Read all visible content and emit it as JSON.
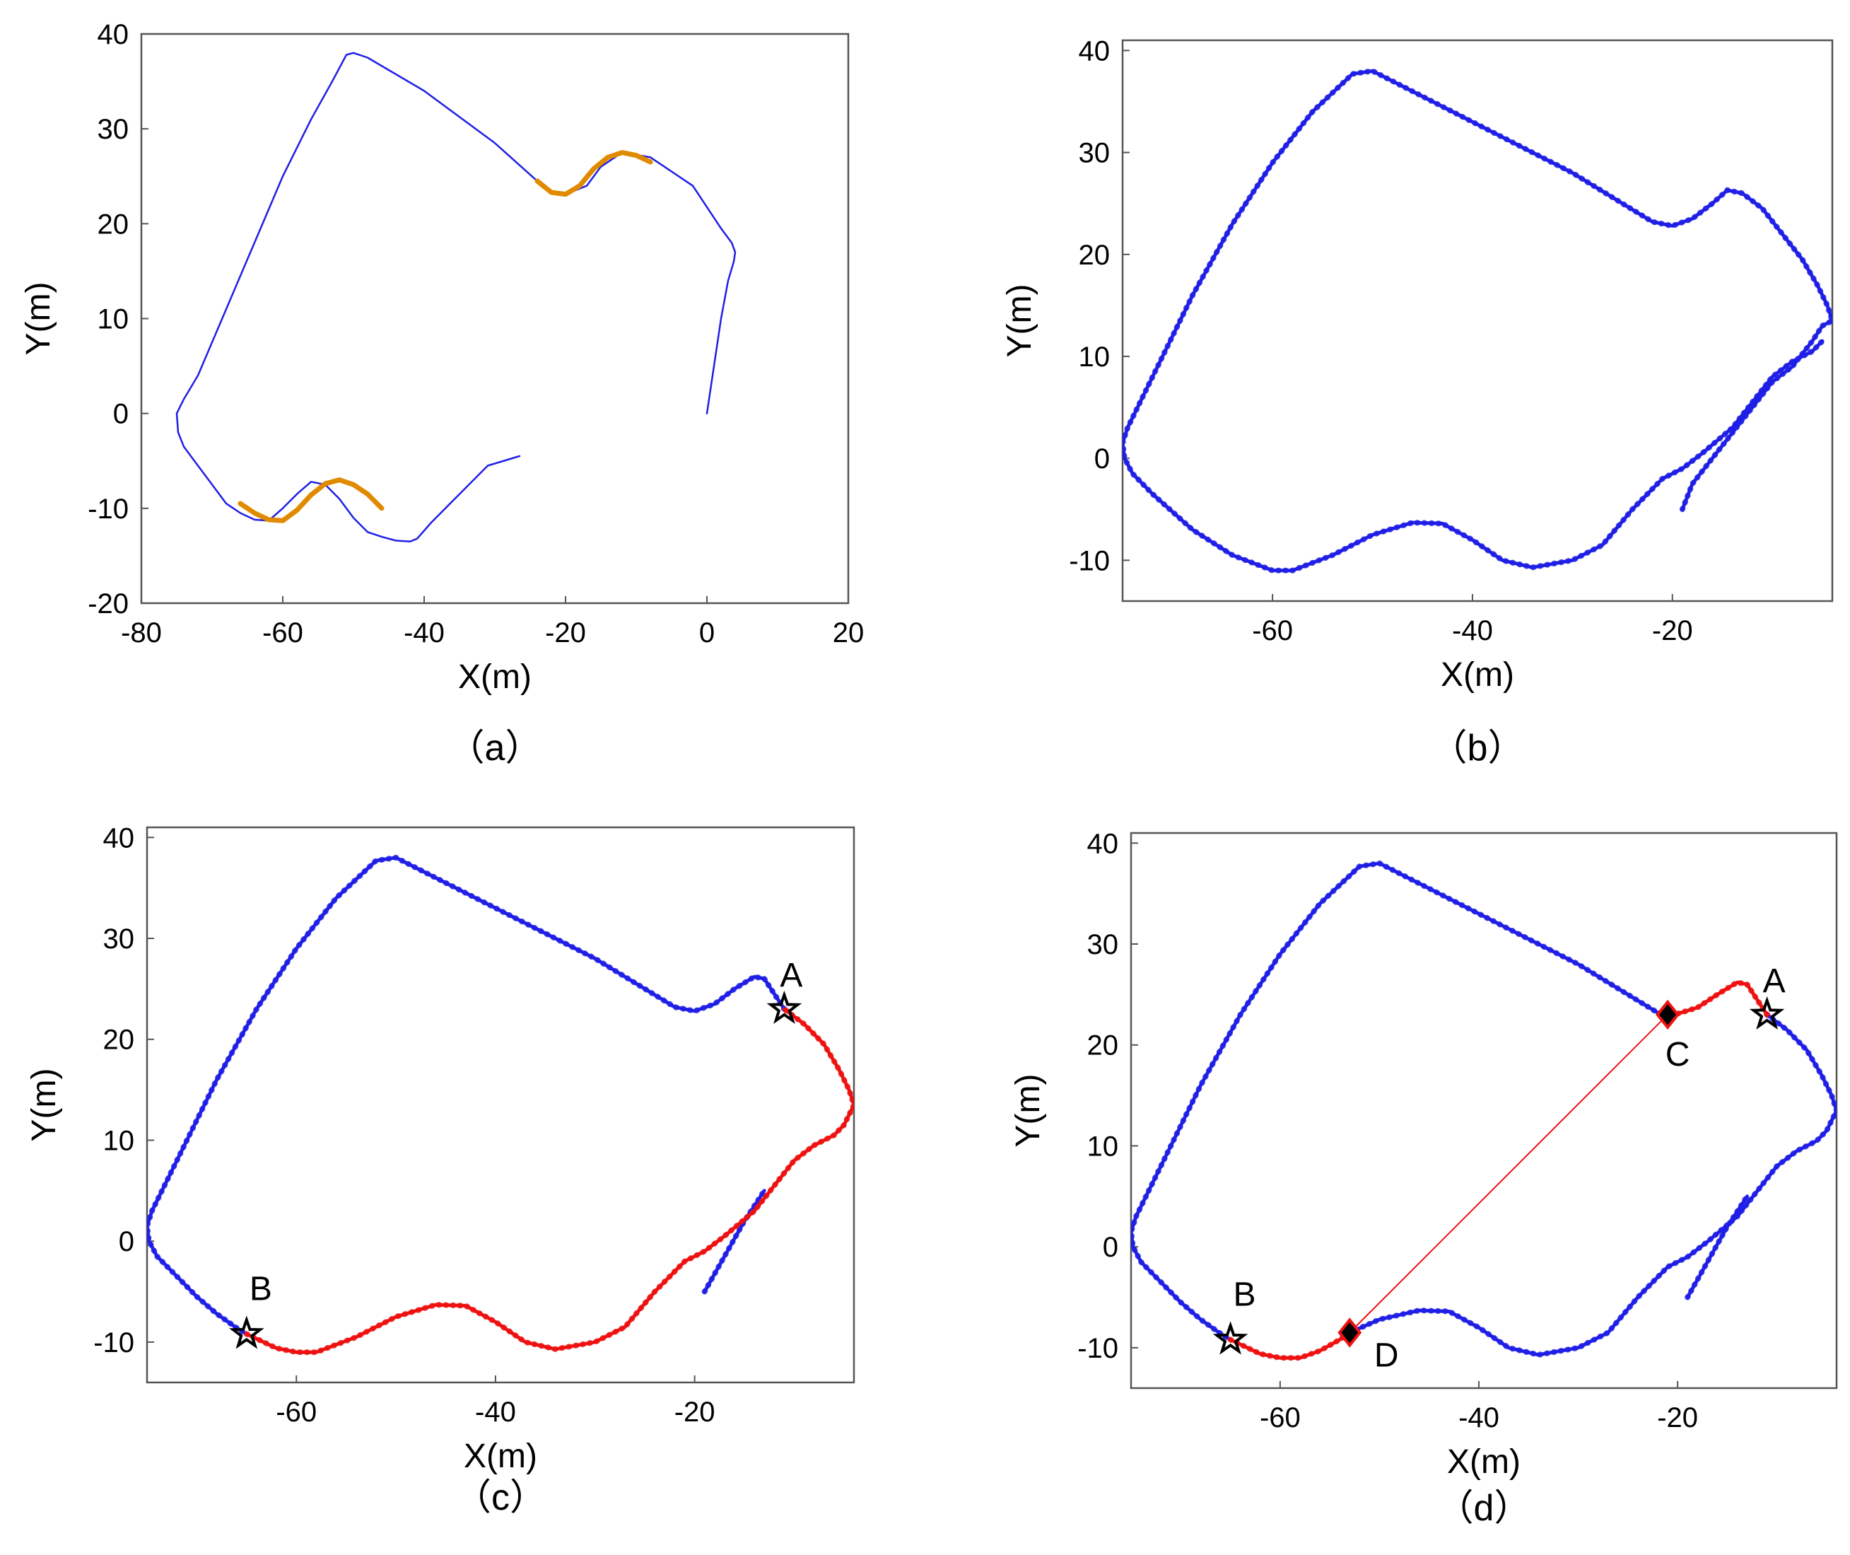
{
  "colors": {
    "trajectory": "#1f1fe6",
    "highlight": "#e08a00",
    "revisit": "#ee1111",
    "loop_link": "#ee1111",
    "marker": "#000000",
    "marker_fill_diamond": "#000000"
  },
  "chart_data": [
    {
      "id": "a",
      "type": "line",
      "caption": "（a）",
      "xlabel": "X(m)",
      "ylabel": "Y(m)",
      "xlim": [
        -80,
        20
      ],
      "ylim": [
        -20,
        40
      ],
      "xticks": [
        -80,
        -60,
        -40,
        -20,
        0,
        20
      ],
      "yticks": [
        -20,
        -10,
        0,
        10,
        20,
        30,
        40
      ],
      "series": [
        {
          "name": "trajectory",
          "style": "thin-blue",
          "x": [
            0,
            1,
            2,
            3,
            3.8,
            4,
            3.5,
            2,
            -2,
            -8,
            -12,
            -15,
            -17,
            -20,
            -22,
            -24,
            -30,
            -40,
            -48,
            -50,
            -51,
            -53,
            -56,
            -60,
            -64,
            -68,
            -72,
            -74,
            -75,
            -74.8,
            -74,
            -72,
            -70,
            -68,
            -66,
            -64,
            -62,
            -60,
            -58,
            -56,
            -54,
            -52,
            -50,
            -48,
            -46,
            -44,
            -42,
            -41,
            -39,
            -35,
            -31,
            -26.5
          ],
          "y": [
            0,
            5,
            10,
            14,
            16,
            17,
            18,
            19.5,
            24,
            27,
            27.5,
            26,
            24,
            23.1,
            23.3,
            24.5,
            28.5,
            34,
            37.5,
            38,
            37.8,
            35,
            31,
            25,
            18,
            11,
            4,
            1.5,
            0,
            -2,
            -3.5,
            -5.5,
            -7.5,
            -9.5,
            -10.5,
            -11.2,
            -11.3,
            -10,
            -8.5,
            -7.2,
            -7.5,
            -9,
            -11,
            -12.5,
            -13,
            -13.4,
            -13.5,
            -13.2,
            -11.5,
            -8.5,
            -5.5,
            -4.5
          ]
        },
        {
          "name": "segment-1",
          "style": "orange",
          "x": [
            -24,
            -22,
            -20,
            -18,
            -16,
            -14,
            -12,
            -10,
            -8
          ],
          "y": [
            24.5,
            23.3,
            23.1,
            24,
            25.8,
            27,
            27.5,
            27.2,
            26.5
          ]
        },
        {
          "name": "segment-2",
          "style": "orange",
          "x": [
            -66,
            -64,
            -62,
            -60,
            -58,
            -56,
            -54,
            -52,
            -50,
            -48,
            -46
          ],
          "y": [
            -9.5,
            -10.5,
            -11.2,
            -11.3,
            -10.2,
            -8.6,
            -7.4,
            -7.0,
            -7.5,
            -8.5,
            -10.0
          ]
        }
      ],
      "markers": []
    },
    {
      "id": "b",
      "type": "line",
      "caption": "（b）",
      "xlabel": "X(m)",
      "ylabel": "Y(m)",
      "xlim": [
        -75,
        -4
      ],
      "ylim": [
        -14,
        41
      ],
      "xticks": [
        -60,
        -40,
        -20
      ],
      "yticks": [
        -10,
        0,
        10,
        20,
        30,
        40
      ],
      "series": [
        {
          "name": "trajectory",
          "style": "dotted-blue",
          "x": [
            -19,
            -18,
            -16,
            -14,
            -12,
            -10,
            -8,
            -6,
            -5,
            -4,
            -4.5,
            -5.5,
            -7,
            -9,
            -11,
            -13,
            -14.5,
            -16,
            -18,
            -20,
            -22,
            -25,
            -30,
            -36,
            -42,
            -48,
            -50,
            -52,
            -56,
            -60,
            -64,
            -68,
            -72,
            -74.5,
            -75,
            -74.8,
            -74,
            -72,
            -68,
            -64,
            -60,
            -58,
            -54,
            -50,
            -46,
            -43,
            -40,
            -37,
            -34,
            -30,
            -27,
            -24,
            -21,
            -19,
            -17,
            -14,
            -12,
            -10,
            -8,
            -6,
            -5
          ],
          "y": [
            -5,
            -2.5,
            0,
            2.5,
            5,
            7.5,
            9,
            11.5,
            13,
            13.5,
            15,
            17,
            19.5,
            22,
            24.5,
            26,
            26.3,
            25,
            23.5,
            22.8,
            23.2,
            25,
            28,
            31,
            34,
            37,
            38,
            37.7,
            34,
            29,
            23,
            16,
            8,
            3,
            1.5,
            0,
            -1.5,
            -3.5,
            -7,
            -9.5,
            -11,
            -11,
            -9.5,
            -7.5,
            -6.3,
            -6.4,
            -8,
            -10,
            -10.7,
            -10,
            -8.5,
            -5,
            -2,
            -1,
            0.5,
            3,
            5.5,
            8,
            9.5,
            10.5,
            11.5
          ]
        }
      ],
      "markers": []
    },
    {
      "id": "c",
      "type": "line",
      "caption": "（c）",
      "xlabel": "X(m)",
      "ylabel": "Y(m)",
      "xlim": [
        -75,
        -4
      ],
      "ylim": [
        -14,
        41
      ],
      "xticks": [
        -60,
        -40,
        -20
      ],
      "yticks": [
        -10,
        0,
        10,
        20,
        30,
        40
      ],
      "series": [
        {
          "name": "trajectory-blue-main",
          "style": "dotted-blue",
          "x": [
            -11,
            -12,
            -13,
            -14,
            -16,
            -18,
            -20,
            -22,
            -25,
            -30,
            -36,
            -42,
            -48,
            -50,
            -52,
            -56,
            -60,
            -64,
            -68,
            -72,
            -74.5,
            -75,
            -74.8,
            -74,
            -72,
            -70,
            -68,
            -66,
            -65
          ],
          "y": [
            23,
            24.5,
            26,
            26.2,
            25,
            23.5,
            22.8,
            23.2,
            25,
            28,
            31,
            34,
            37,
            38,
            37.7,
            34,
            29,
            23,
            16,
            8,
            3,
            1.5,
            0,
            -1.5,
            -3.5,
            -5.5,
            -7.2,
            -8.6,
            -9.2
          ]
        },
        {
          "name": "trajectory-blue-tail",
          "style": "dotted-blue",
          "x": [
            -19,
            -17,
            -15,
            -13
          ],
          "y": [
            -5,
            -1.5,
            2,
            5
          ]
        },
        {
          "name": "revisit",
          "style": "dotted-red",
          "x": [
            -65,
            -62,
            -60,
            -58,
            -54,
            -50,
            -46,
            -43,
            -40,
            -37,
            -34,
            -30,
            -27,
            -24,
            -21,
            -19,
            -17,
            -14,
            -12,
            -10,
            -8,
            -6,
            -5,
            -4,
            -4.5,
            -5.5,
            -7,
            -9,
            -11
          ],
          "y": [
            -9.2,
            -10.6,
            -11,
            -11,
            -9.5,
            -7.5,
            -6.3,
            -6.4,
            -8,
            -10,
            -10.7,
            -10,
            -8.5,
            -5,
            -2,
            -1,
            0.5,
            3,
            5.5,
            8,
            9.5,
            10.5,
            11.5,
            13.5,
            15,
            17,
            19.5,
            21.5,
            23
          ]
        }
      ],
      "markers": [
        {
          "label": "A",
          "shape": "star",
          "x": -11,
          "y": 23
        },
        {
          "label": "B",
          "shape": "star",
          "x": -65,
          "y": -9.2
        }
      ]
    },
    {
      "id": "d",
      "type": "line",
      "caption": "（d）",
      "xlabel": "X(m)",
      "ylabel": "Y(m)",
      "xlim": [
        -75,
        -4
      ],
      "ylim": [
        -14,
        41
      ],
      "xticks": [
        -60,
        -40,
        -20
      ],
      "yticks": [
        -10,
        0,
        10,
        20,
        30,
        40
      ],
      "series": [
        {
          "name": "trajectory-blue-left",
          "style": "dotted-blue",
          "x": [
            -21,
            -22,
            -25,
            -30,
            -36,
            -42,
            -48,
            -50,
            -52,
            -56,
            -60,
            -64,
            -68,
            -72,
            -74.5,
            -75,
            -74.8,
            -74,
            -72,
            -70,
            -68,
            -66,
            -65
          ],
          "y": [
            23,
            23.2,
            25,
            28,
            31,
            34,
            37,
            38,
            37.7,
            34,
            29,
            23,
            16,
            8,
            3,
            1.5,
            0,
            -1.5,
            -3.5,
            -5.5,
            -7.2,
            -8.6,
            -9.2
          ]
        },
        {
          "name": "trajectory-blue-bottom",
          "style": "dotted-blue",
          "x": [
            -53,
            -50,
            -46,
            -43,
            -40,
            -37,
            -34,
            -30,
            -27,
            -24,
            -21,
            -19,
            -17,
            -14,
            -12,
            -10,
            -8,
            -6,
            -5,
            -4,
            -4.5,
            -5.5,
            -7,
            -9,
            -11
          ],
          "y": [
            -8.5,
            -7.2,
            -6.3,
            -6.4,
            -8,
            -10,
            -10.7,
            -10,
            -8.5,
            -5,
            -2,
            -1,
            0.5,
            3,
            5.5,
            8,
            9.5,
            10.5,
            11.5,
            13.5,
            15,
            17,
            19.5,
            21.5,
            23
          ]
        },
        {
          "name": "trajectory-blue-tail",
          "style": "dotted-blue",
          "x": [
            -19,
            -17,
            -15,
            -13
          ],
          "y": [
            -5,
            -1.5,
            2,
            5
          ]
        },
        {
          "name": "revisit-top",
          "style": "dotted-red",
          "x": [
            -11,
            -12,
            -13,
            -14,
            -16,
            -18,
            -20,
            -21
          ],
          "y": [
            23,
            24.5,
            26,
            26.2,
            25,
            23.7,
            23.1,
            23
          ]
        },
        {
          "name": "revisit-bottom",
          "style": "dotted-red",
          "x": [
            -65,
            -62,
            -60,
            -58,
            -56,
            -54,
            -53
          ],
          "y": [
            -9.2,
            -10.6,
            -11,
            -11,
            -10.3,
            -9.2,
            -8.5
          ]
        },
        {
          "name": "loop-closure",
          "style": "thin-red",
          "x": [
            -21,
            -53
          ],
          "y": [
            23,
            -8.5
          ]
        }
      ],
      "markers": [
        {
          "label": "A",
          "shape": "star",
          "x": -11,
          "y": 23
        },
        {
          "label": "B",
          "shape": "star",
          "x": -65,
          "y": -9.2
        },
        {
          "label": "C",
          "shape": "diamond",
          "x": -21,
          "y": 23
        },
        {
          "label": "D",
          "shape": "diamond",
          "x": -53,
          "y": -8.5
        }
      ]
    }
  ]
}
